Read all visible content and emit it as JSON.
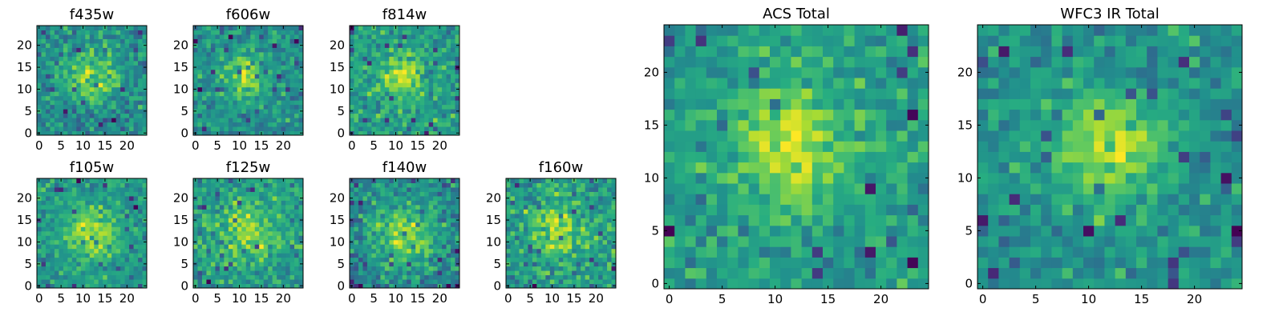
{
  "chart_data": [
    {
      "type": "heatmap",
      "title": "f435w",
      "colormap": "viridis",
      "grid_size": 25,
      "xticks": [
        0,
        5,
        10,
        15,
        20
      ],
      "yticks": [
        0,
        5,
        10,
        15,
        20
      ],
      "xlim": [
        0,
        24
      ],
      "ylim": [
        0,
        24
      ],
      "grid": false,
      "source_peak": [
        12,
        13
      ],
      "source_width": 4.2,
      "noise_level": 0.3,
      "seed": 11
    },
    {
      "type": "heatmap",
      "title": "f606w",
      "colormap": "viridis",
      "grid_size": 25,
      "xticks": [
        0,
        5,
        10,
        15,
        20
      ],
      "yticks": [
        0,
        5,
        10,
        15,
        20
      ],
      "xlim": [
        0,
        24
      ],
      "ylim": [
        0,
        24
      ],
      "grid": false,
      "source_peak": [
        11,
        13
      ],
      "source_width": 3.2,
      "noise_level": 0.25,
      "seed": 22
    },
    {
      "type": "heatmap",
      "title": "f814w",
      "colormap": "viridis",
      "grid_size": 25,
      "xticks": [
        0,
        5,
        10,
        15,
        20
      ],
      "yticks": [
        0,
        5,
        10,
        15,
        20
      ],
      "xlim": [
        0,
        24
      ],
      "ylim": [
        0,
        24
      ],
      "grid": false,
      "source_peak": [
        11,
        13
      ],
      "source_width": 3.3,
      "noise_level": 0.25,
      "seed": 33
    },
    {
      "type": "heatmap",
      "title": "f105w",
      "colormap": "viridis",
      "grid_size": 25,
      "xticks": [
        0,
        5,
        10,
        15,
        20
      ],
      "yticks": [
        0,
        5,
        10,
        15,
        20
      ],
      "xlim": [
        0,
        24
      ],
      "ylim": [
        0,
        24
      ],
      "grid": false,
      "source_peak": [
        12,
        12
      ],
      "source_width": 4.0,
      "noise_level": 0.22,
      "seed": 44
    },
    {
      "type": "heatmap",
      "title": "f125w",
      "colormap": "viridis",
      "grid_size": 25,
      "xticks": [
        0,
        5,
        10,
        15,
        20
      ],
      "yticks": [
        0,
        5,
        10,
        15,
        20
      ],
      "xlim": [
        0,
        24
      ],
      "ylim": [
        0,
        24
      ],
      "grid": false,
      "source_peak": [
        12,
        12
      ],
      "source_width": 4.5,
      "noise_level": 0.3,
      "seed": 55
    },
    {
      "type": "heatmap",
      "title": "f140w",
      "colormap": "viridis",
      "grid_size": 25,
      "xticks": [
        0,
        5,
        10,
        15,
        20
      ],
      "yticks": [
        0,
        5,
        10,
        15,
        20
      ],
      "xlim": [
        0,
        24
      ],
      "ylim": [
        0,
        24
      ],
      "grid": false,
      "source_peak": [
        12,
        12
      ],
      "source_width": 5.5,
      "noise_level": 0.3,
      "seed": 66
    },
    {
      "type": "heatmap",
      "title": "f160w",
      "colormap": "viridis",
      "grid_size": 25,
      "xticks": [
        0,
        5,
        10,
        15,
        20
      ],
      "yticks": [
        0,
        5,
        10,
        15,
        20
      ],
      "xlim": [
        0,
        24
      ],
      "ylim": [
        0,
        24
      ],
      "grid": false,
      "source_peak": [
        11,
        13
      ],
      "source_width": 3.8,
      "noise_level": 0.3,
      "seed": 77
    },
    {
      "type": "heatmap",
      "title": "ACS Total",
      "colormap": "viridis",
      "grid_size": 25,
      "xticks": [
        0,
        5,
        10,
        15,
        20
      ],
      "yticks": [
        0,
        5,
        10,
        15,
        20
      ],
      "xlim": [
        0,
        24
      ],
      "ylim": [
        0,
        24
      ],
      "grid": false,
      "source_peak": [
        11,
        13
      ],
      "source_width": 3.6,
      "noise_level": 0.2,
      "seed": 88
    },
    {
      "type": "heatmap",
      "title": "WFC3 IR Total",
      "colormap": "viridis",
      "grid_size": 25,
      "xticks": [
        0,
        5,
        10,
        15,
        20
      ],
      "yticks": [
        0,
        5,
        10,
        15,
        20
      ],
      "xlim": [
        0,
        24
      ],
      "ylim": [
        0,
        24
      ],
      "grid": false,
      "source_peak": [
        12,
        13
      ],
      "source_width": 3.8,
      "noise_level": 0.2,
      "seed": 99
    }
  ]
}
